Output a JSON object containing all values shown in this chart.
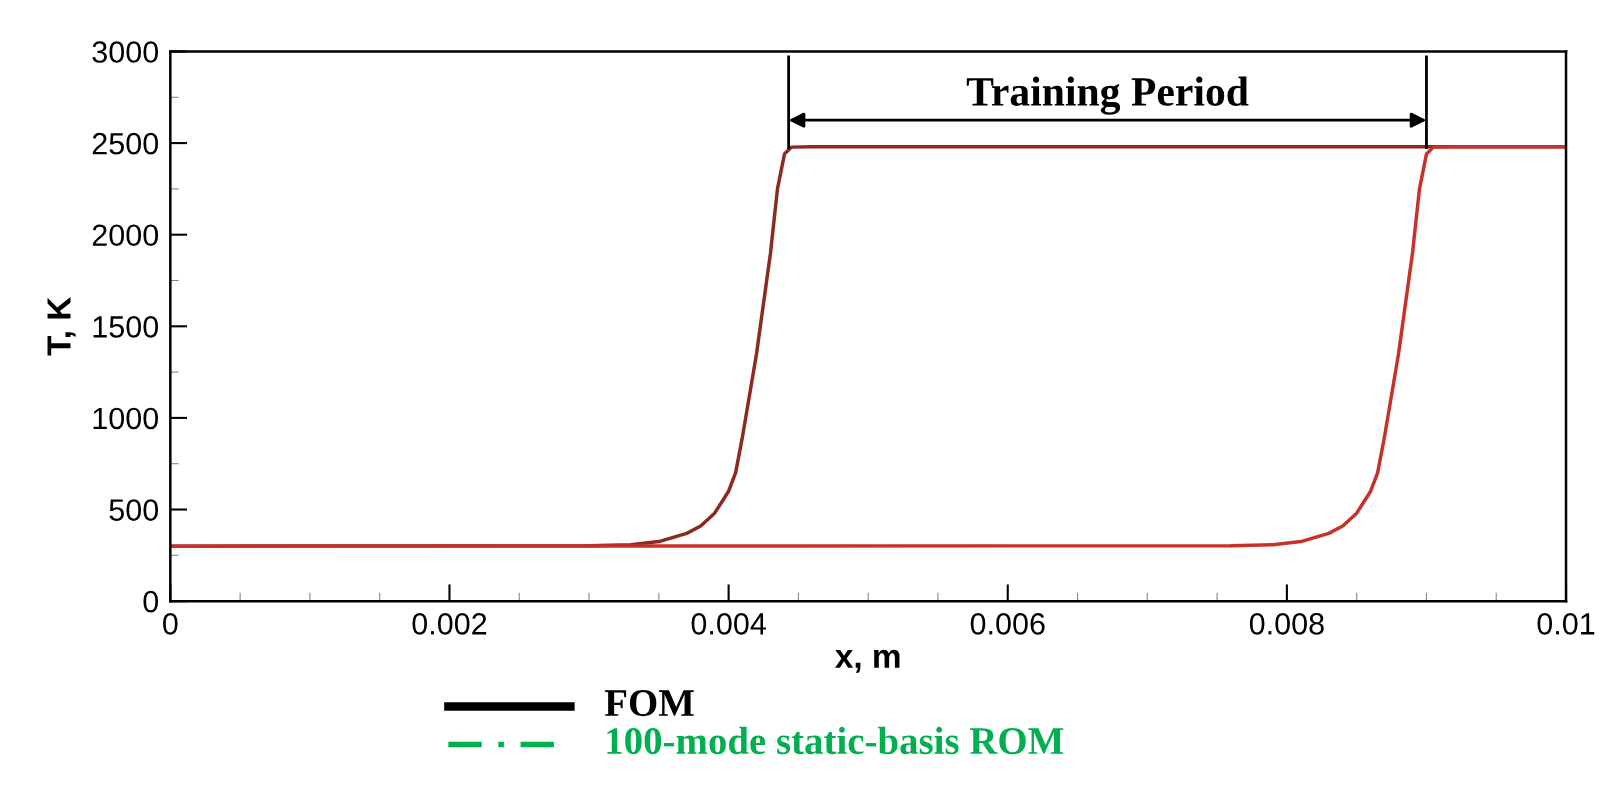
{
  "chart_data": {
    "type": "line",
    "xlabel": "x, m",
    "ylabel": "T, K",
    "series": [
      {
        "color": "#8b2a1e",
        "x": [
          0,
          0.003,
          0.0033,
          0.0035,
          0.0037,
          0.0038,
          0.0039,
          0.004,
          0.00405,
          0.0041,
          0.0042,
          0.0043,
          0.00435,
          0.0044,
          0.00445,
          0.0046,
          0.01
        ],
        "values": [
          300,
          302,
          308,
          325,
          370,
          410,
          480,
          600,
          700,
          900,
          1350,
          1900,
          2250,
          2440,
          2478,
          2480,
          2480
        ]
      },
      {
        "color": "#c8302a",
        "x": [
          0,
          0.0076,
          0.0079,
          0.0081,
          0.0083,
          0.0084,
          0.0085,
          0.0086,
          0.00865,
          0.0087,
          0.0088,
          0.0089,
          0.00895,
          0.009,
          0.00905,
          0.0092,
          0.01
        ],
        "values": [
          300,
          302,
          308,
          325,
          370,
          410,
          480,
          600,
          700,
          900,
          1350,
          1900,
          2250,
          2440,
          2478,
          2480,
          2480
        ]
      }
    ],
    "ref_lines": [
      {
        "axis": "x",
        "value": 0.00443,
        "color": "#000000"
      },
      {
        "axis": "x",
        "value": 0.009,
        "color": "#000000"
      }
    ],
    "annotations": [
      "Training Period",
      "FOM",
      "100-mode static-basis ROM"
    ],
    "xlim": [
      0,
      0.01
    ],
    "xticks": [
      0,
      0.002,
      0.004,
      0.006,
      0.008,
      0.01
    ],
    "ylim": [
      0,
      3000
    ],
    "yticks": [
      0,
      500,
      1000,
      1500,
      2000,
      2500,
      3000
    ],
    "grid": false,
    "legend": false,
    "line_style": "solid",
    "marker": "none"
  }
}
